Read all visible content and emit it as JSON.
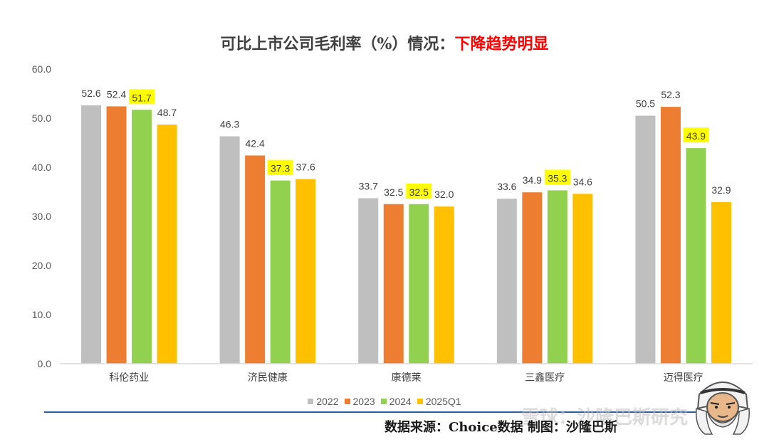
{
  "title": {
    "prefix": "可比上市公司毛利率（%）情况：",
    "emphasis": "下降趋势明显"
  },
  "chart_data": {
    "type": "bar",
    "categories": [
      "科伦药业",
      "济民健康",
      "康德莱",
      "三鑫医疗",
      "迈得医疗"
    ],
    "series": [
      {
        "name": "2022",
        "color": "#bfbfbf",
        "values": [
          52.6,
          46.3,
          33.7,
          33.6,
          50.5
        ],
        "labels": [
          "52.6",
          "46.3",
          "33.7",
          "33.6",
          "50.5"
        ]
      },
      {
        "name": "2023",
        "color": "#ed7d31",
        "values": [
          52.4,
          42.4,
          32.5,
          34.9,
          52.3
        ],
        "labels": [
          "52.4",
          "42.4",
          "32.5",
          "34.9",
          "52.3"
        ]
      },
      {
        "name": "2024",
        "color": "#92d050",
        "values": [
          51.7,
          37.3,
          32.5,
          35.3,
          43.9
        ],
        "labels": [
          "51.7",
          "37.3",
          "32.5",
          "35.3",
          "43.9"
        ],
        "label_highlight": "#ffff00"
      },
      {
        "name": "2025Q1",
        "color": "#ffc000",
        "values": [
          48.7,
          37.6,
          32.0,
          34.6,
          32.9
        ],
        "labels": [
          "48.7",
          "37.6",
          "32.0",
          "34.6",
          "32.9"
        ]
      }
    ],
    "ylim": [
      0,
      60
    ],
    "yticks": [
      "0.0",
      "10.0",
      "20.0",
      "30.0",
      "40.0",
      "50.0",
      "60.0"
    ],
    "grid": false,
    "legend_position": "bottom"
  },
  "footer": {
    "source": "数据来源：Choice数据    制图：沙隆巴斯",
    "watermark": "雪球：沙隆巴斯研究"
  }
}
